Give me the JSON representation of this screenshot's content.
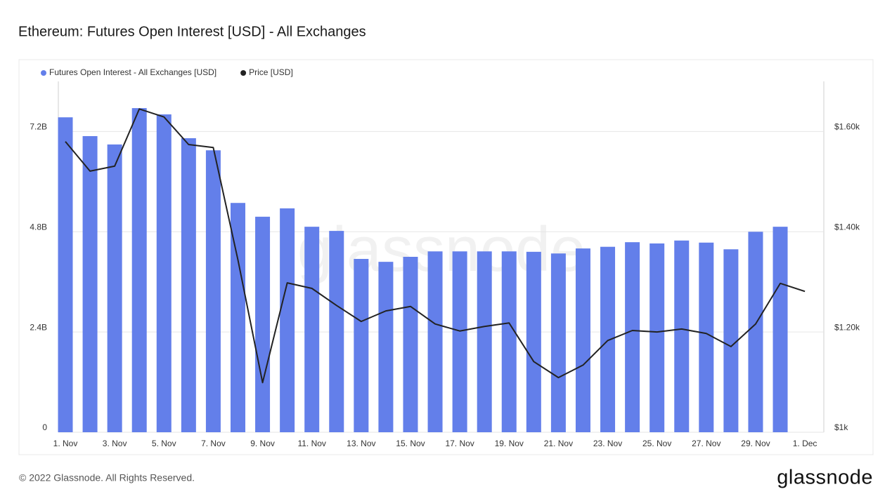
{
  "chart_data": {
    "type": "bar",
    "title": "Ethereum: Futures Open Interest [USD] - All Exchanges",
    "watermark": "glassnode",
    "categories": [
      "1. Nov",
      null,
      "3. Nov",
      null,
      "5. Nov",
      null,
      "7. Nov",
      null,
      "9. Nov",
      null,
      "11. Nov",
      null,
      "13. Nov",
      null,
      "15. Nov",
      null,
      "17. Nov",
      null,
      "19. Nov",
      null,
      "21. Nov",
      null,
      "23. Nov",
      null,
      "25. Nov",
      null,
      "27. Nov",
      null,
      "29. Nov",
      null,
      "1. Dec"
    ],
    "series": [
      {
        "name": "Futures Open Interest - All Exchanges [USD]",
        "type": "bar",
        "axis": "y",
        "color": "#637fea",
        "values": [
          7540000000,
          7090000000,
          6890000000,
          7760000000,
          7610000000,
          7040000000,
          6750000000,
          5490000000,
          5160000000,
          5360000000,
          4920000000,
          4820000000,
          4150000000,
          4080000000,
          4200000000,
          4330000000,
          4330000000,
          4330000000,
          4330000000,
          4320000000,
          4280000000,
          4400000000,
          4440000000,
          4550000000,
          4520000000,
          4590000000,
          4540000000,
          4380000000,
          4800000000,
          4920000000,
          null
        ]
      },
      {
        "name": "Price [USD]",
        "type": "line",
        "axis": "y2",
        "color": "#222222",
        "values": [
          1580,
          1521,
          1531,
          1645,
          1629,
          1574,
          1568,
          1344,
          1099,
          1298,
          1287,
          1253,
          1221,
          1242,
          1251,
          1216,
          1202,
          1211,
          1218,
          1141,
          1109,
          1134,
          1183,
          1203,
          1200,
          1206,
          1197,
          1171,
          1216,
          1297,
          1281
        ]
      }
    ],
    "ylim": [
      0,
      8400000000
    ],
    "yticks": [
      0,
      {
        "value": 2400000000,
        "label": "2.4B"
      },
      {
        "value": 4800000000,
        "label": "4.8B"
      },
      {
        "value": 7200000000,
        "label": "7.2B"
      }
    ],
    "y2lim": [
      1000,
      1700
    ],
    "y2ticks": [
      {
        "value": 1000,
        "label": "$1k"
      },
      {
        "value": 1200,
        "label": "$1.20k"
      },
      {
        "value": 1400,
        "label": "$1.40k"
      },
      {
        "value": 1600,
        "label": "$1.60k"
      }
    ],
    "grid": true
  },
  "footer": {
    "copyright": "© 2022 Glassnode. All Rights Reserved.",
    "logo": "glassnode"
  }
}
